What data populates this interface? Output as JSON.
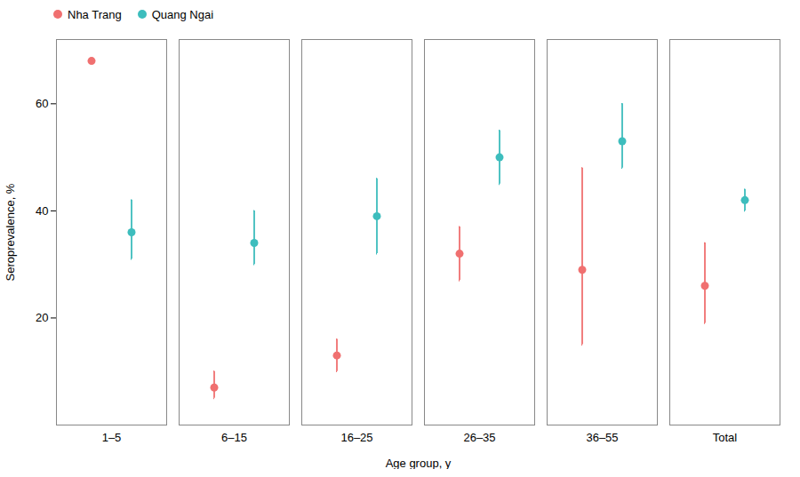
{
  "chart_data": {
    "type": "errorbar",
    "categories": [
      "1–5",
      "6–15",
      "16–25",
      "26–35",
      "36–55",
      "Total"
    ],
    "series": [
      {
        "name": "Nha Trang",
        "color": "#F07070",
        "values": [
          68,
          7,
          13,
          32,
          29,
          26
        ],
        "ci_low": [
          null,
          5,
          10,
          27,
          15,
          19
        ],
        "ci_high": [
          null,
          10,
          16,
          37,
          48,
          34
        ]
      },
      {
        "name": "Quang Ngai",
        "color": "#3DBDBD",
        "values": [
          36,
          34,
          39,
          50,
          53,
          42
        ],
        "ci_low": [
          31,
          30,
          32,
          45,
          48,
          40
        ],
        "ci_high": [
          42,
          40,
          46,
          55,
          60,
          44
        ]
      }
    ],
    "xlabel": "Age group, y",
    "ylabel": "Seroprevalence, %",
    "ylim": [
      0,
      72
    ],
    "yticks": [
      20,
      40,
      60
    ],
    "marker": "circle",
    "grid": false,
    "legend": "top-left"
  }
}
